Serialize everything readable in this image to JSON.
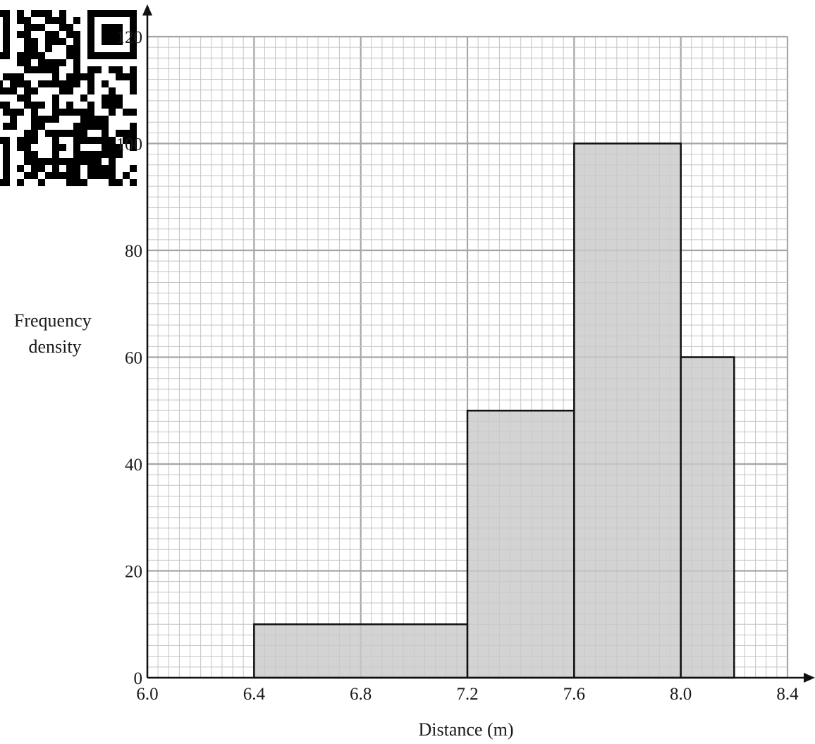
{
  "chart_data": {
    "type": "bar",
    "histogram": true,
    "title": "",
    "xlabel": "Distance (m)",
    "ylabel_lines": [
      "Frequency",
      "density"
    ],
    "xlim": [
      6.0,
      8.4
    ],
    "ylim": [
      0,
      120
    ],
    "x_ticks": [
      6.0,
      6.4,
      6.8,
      7.2,
      7.6,
      8.0,
      8.4
    ],
    "x_tick_labels": [
      "6.0",
      "6.4",
      "6.8",
      "7.2",
      "7.6",
      "8.0",
      "8.4"
    ],
    "y_ticks": [
      0,
      20,
      40,
      60,
      80,
      100,
      120
    ],
    "y_tick_labels": [
      "0",
      "20",
      "40",
      "60",
      "80",
      "100",
      "120"
    ],
    "bins": [
      {
        "x0": 6.4,
        "x1": 7.2,
        "value": 10
      },
      {
        "x0": 7.2,
        "x1": 7.6,
        "value": 50
      },
      {
        "x0": 7.6,
        "x1": 8.0,
        "value": 100
      },
      {
        "x0": 8.0,
        "x1": 8.2,
        "value": 60
      }
    ],
    "grid": true,
    "bar_color": "#c9c9c9",
    "bar_edge_color": "#111111",
    "grid_major_color": "#a6a6a6",
    "grid_minor_color": "#c4c4c4"
  },
  "qr_code": {
    "icon": "qr-code-icon",
    "color": "#000000"
  }
}
